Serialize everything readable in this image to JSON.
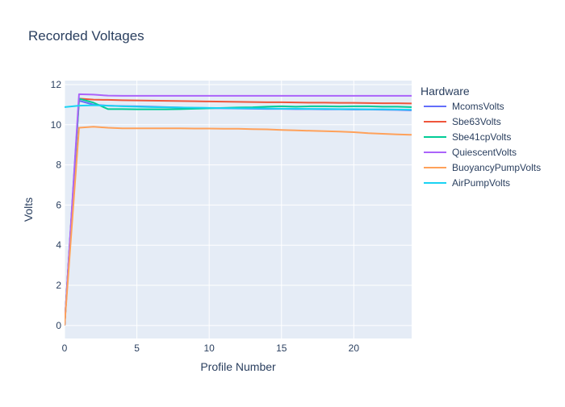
{
  "chart_data": {
    "type": "line",
    "title": "Recorded Voltages",
    "xlabel": "Profile Number",
    "ylabel": "Volts",
    "xlim": [
      0,
      24
    ],
    "ylim": [
      -0.65,
      12.2
    ],
    "x_ticks": [
      0,
      5,
      10,
      15,
      20
    ],
    "x_tick_labels": [
      "0",
      "5",
      "10",
      "15",
      "20"
    ],
    "y_ticks": [
      0,
      2,
      4,
      6,
      8,
      10,
      12
    ],
    "y_tick_labels": [
      "0",
      "2",
      "4",
      "6",
      "8",
      "10",
      "12"
    ],
    "grid": true,
    "legend_title": "Hardware",
    "legend_position": "right",
    "x": [
      0,
      1,
      2,
      3,
      4,
      5,
      6,
      7,
      8,
      9,
      10,
      11,
      12,
      13,
      14,
      15,
      16,
      17,
      18,
      19,
      20,
      21,
      22,
      23,
      24
    ],
    "series": [
      {
        "name": "McomsVolts",
        "color": "#636efa",
        "values": [
          0.0,
          11.2,
          11.0,
          10.95,
          10.93,
          10.92,
          10.9,
          10.88,
          10.86,
          10.84,
          10.83,
          10.82,
          10.81,
          10.8,
          10.79,
          10.79,
          10.78,
          10.78,
          10.77,
          10.77,
          10.76,
          10.76,
          10.75,
          10.74,
          10.72
        ]
      },
      {
        "name": "Sbe63Volts",
        "color": "#ef553b",
        "values": [
          0.0,
          11.3,
          11.25,
          11.24,
          11.22,
          11.21,
          11.2,
          11.19,
          11.18,
          11.17,
          11.16,
          11.15,
          11.14,
          11.13,
          11.12,
          11.12,
          11.11,
          11.1,
          11.1,
          11.09,
          11.09,
          11.08,
          11.07,
          11.07,
          11.06
        ]
      },
      {
        "name": "Sbe41cpVolts",
        "color": "#00cc96",
        "values": [
          0.0,
          11.3,
          11.1,
          10.78,
          10.78,
          10.77,
          10.77,
          10.77,
          10.78,
          10.8,
          10.82,
          10.84,
          10.86,
          10.87,
          10.9,
          10.92,
          10.9,
          10.92,
          10.92,
          10.91,
          10.92,
          10.92,
          10.9,
          10.9,
          10.88
        ]
      },
      {
        "name": "QuiescentVolts",
        "color": "#ab63fa",
        "values": [
          0.0,
          11.52,
          11.5,
          11.45,
          11.44,
          11.44,
          11.44,
          11.44,
          11.44,
          11.44,
          11.44,
          11.44,
          11.44,
          11.44,
          11.44,
          11.44,
          11.44,
          11.44,
          11.44,
          11.44,
          11.44,
          11.44,
          11.44,
          11.44,
          11.44
        ]
      },
      {
        "name": "BuoyancyPumpVolts",
        "color": "#ffa15a",
        "values": [
          0.0,
          9.85,
          9.9,
          9.85,
          9.82,
          9.82,
          9.82,
          9.82,
          9.82,
          9.81,
          9.81,
          9.8,
          9.8,
          9.78,
          9.77,
          9.74,
          9.72,
          9.7,
          9.68,
          9.66,
          9.63,
          9.58,
          9.55,
          9.52,
          9.5
        ]
      },
      {
        "name": "AirPumpVolts",
        "color": "#19d3f3",
        "values": [
          10.88,
          10.95,
          10.97,
          10.95,
          10.92,
          10.9,
          10.88,
          10.87,
          10.86,
          10.85,
          10.84,
          10.83,
          10.82,
          10.82,
          10.81,
          10.8,
          10.8,
          10.79,
          10.79,
          10.78,
          10.78,
          10.77,
          10.77,
          10.76,
          10.75
        ]
      }
    ]
  }
}
